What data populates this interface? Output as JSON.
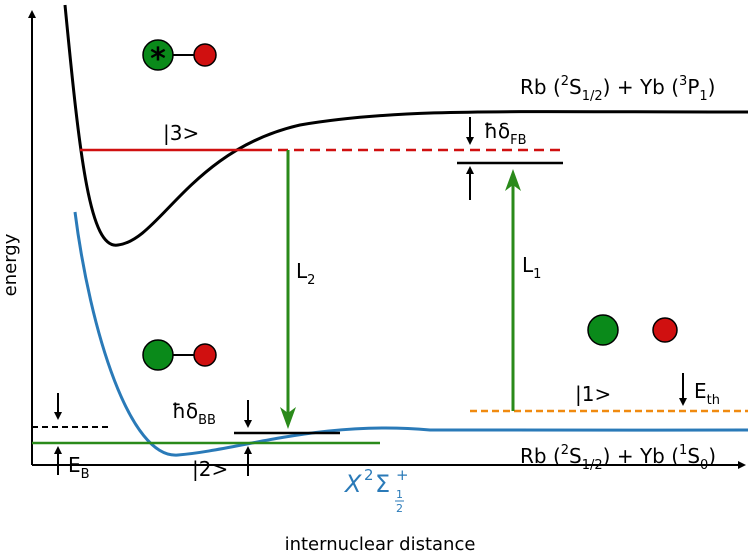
{
  "axes": {
    "x_label": "internuclear distance",
    "y_label": "energy"
  },
  "asymptotes": {
    "upper": [
      "Rb (",
      "2",
      "S",
      "1/2",
      ") + Yb (",
      "3",
      "P",
      "1",
      ")"
    ],
    "lower": [
      "Rb (",
      "2",
      "S",
      "1/2",
      ") + Yb (",
      "1",
      "S",
      "0",
      ")"
    ]
  },
  "states": {
    "s3": "|3>",
    "s2": "|2>",
    "s1": "|1>"
  },
  "lasers": {
    "l2": [
      "L",
      "2"
    ],
    "l1": [
      "L",
      "1"
    ]
  },
  "detunings": {
    "fb": [
      "ħδ",
      "FB"
    ],
    "bb": [
      "ħδ",
      "BB"
    ]
  },
  "energies": {
    "th": [
      "E",
      "th"
    ],
    "b": [
      "E",
      "B"
    ]
  },
  "ground_term": [
    "X",
    "2",
    "Σ",
    "+",
    "1",
    "2"
  ],
  "excited_marker": "*"
}
